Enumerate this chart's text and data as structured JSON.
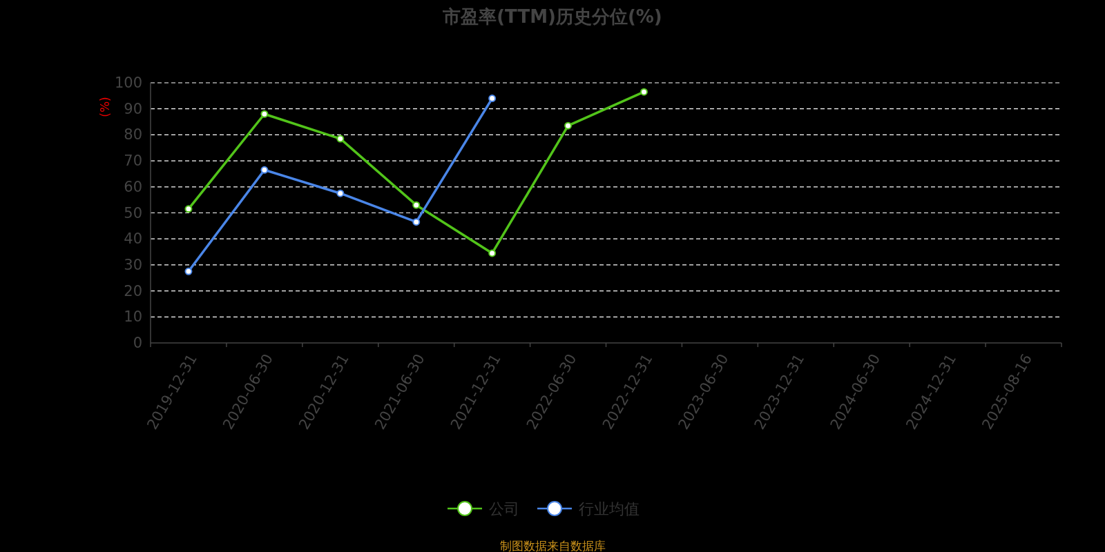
{
  "chart_data": {
    "type": "line",
    "title": "市盈率(TTM)历史分位(%)",
    "ylabel": "(%)",
    "annotations": [
      "制图数据来自数据库"
    ],
    "categories": [
      "2019-12-31",
      "2020-06-30",
      "2020-12-31",
      "2021-06-30",
      "2021-12-31",
      "2022-06-30",
      "2022-12-31",
      "2023-06-30",
      "2023-12-31",
      "2024-06-30",
      "2024-12-31",
      "2025-08-16"
    ],
    "series": [
      {
        "name": "公司",
        "color": "#52c41a",
        "values": [
          51.5,
          88,
          78.5,
          53,
          34.5,
          83.5,
          96.5,
          null,
          null,
          null,
          null,
          null
        ]
      },
      {
        "name": "行业均值",
        "color": "#4a86e8",
        "values": [
          27.5,
          66.5,
          57.5,
          46.5,
          94,
          null,
          null,
          null,
          null,
          null,
          null,
          null
        ]
      }
    ],
    "ylim": [
      0,
      100
    ],
    "yticks": [
      0,
      10,
      20,
      30,
      40,
      50,
      60,
      70,
      80,
      90,
      100
    ],
    "grid": "y",
    "legend": "bottom",
    "marker": "circle"
  }
}
